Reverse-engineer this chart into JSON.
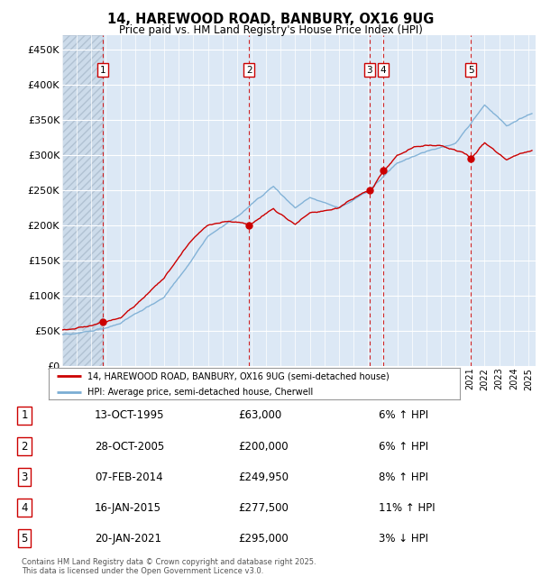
{
  "title": "14, HAREWOOD ROAD, BANBURY, OX16 9UG",
  "subtitle": "Price paid vs. HM Land Registry's House Price Index (HPI)",
  "yticks": [
    0,
    50000,
    100000,
    150000,
    200000,
    250000,
    300000,
    350000,
    400000,
    450000
  ],
  "ytick_labels": [
    "£0",
    "£50K",
    "£100K",
    "£150K",
    "£200K",
    "£250K",
    "£300K",
    "£350K",
    "£400K",
    "£450K"
  ],
  "xmin": 1993.0,
  "xmax": 2025.5,
  "ymin": 0,
  "ymax": 470000,
  "sale_dates_x": [
    1995.79,
    2005.83,
    2014.1,
    2015.05,
    2021.05
  ],
  "sale_prices": [
    63000,
    200000,
    249950,
    277500,
    295000
  ],
  "sale_labels": [
    "1",
    "2",
    "3",
    "4",
    "5"
  ],
  "sale_dates_str": [
    "13-OCT-1995",
    "28-OCT-2005",
    "07-FEB-2014",
    "16-JAN-2015",
    "20-JAN-2021"
  ],
  "sale_hpi_pct": [
    "6% ↑ HPI",
    "6% ↑ HPI",
    "8% ↑ HPI",
    "11% ↑ HPI",
    "3% ↓ HPI"
  ],
  "sale_prices_str": [
    "£63,000",
    "£200,000",
    "£249,950",
    "£277,500",
    "£295,000"
  ],
  "legend_label_red": "14, HAREWOOD ROAD, BANBURY, OX16 9UG (semi-detached house)",
  "legend_label_blue": "HPI: Average price, semi-detached house, Cherwell",
  "footnote": "Contains HM Land Registry data © Crown copyright and database right 2025.\nThis data is licensed under the Open Government Licence v3.0.",
  "red_color": "#cc0000",
  "blue_color": "#7aadd4",
  "bg_color": "#ffffff",
  "plot_bg_color": "#dce8f5",
  "grid_color": "#ffffff"
}
